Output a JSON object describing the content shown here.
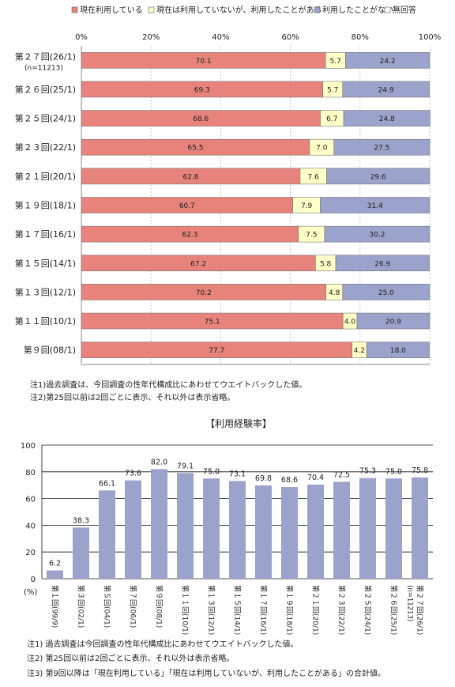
{
  "chart_data": [
    {
      "type": "bar",
      "orientation": "horizontal",
      "stacked": true,
      "percent_scale": true,
      "legend_position": "top",
      "xlim": [
        0,
        100
      ],
      "x_tick_labels": [
        "0%",
        "20%",
        "40%",
        "60%",
        "80%",
        "100%"
      ],
      "grid": true,
      "colors": {
        "現在利用している": "#e8837b",
        "現在は利用していないが、利用したことがある": "#ffffc8",
        "利用したことがない": "#9ba2cb",
        "無回答": "#ffffff"
      },
      "categories": [
        "第２７回(26/1)",
        "第２６回(25/1)",
        "第２５回(24/1)",
        "第２３回(22/1)",
        "第２１回(20/1)",
        "第１９回(18/1)",
        "第１７回(16/1)",
        "第１５回(14/1)",
        "第１３回(12/1)",
        "第１１回(10/1)",
        "第９回(08/1)"
      ],
      "sample_note": "(n=11213)",
      "series": [
        {
          "name": "現在利用している",
          "values": [
            70.1,
            69.3,
            68.6,
            65.5,
            62.8,
            60.7,
            62.3,
            67.2,
            70.2,
            75.1,
            77.7
          ]
        },
        {
          "name": "現在は利用していないが、利用したことがある",
          "values": [
            5.7,
            5.7,
            6.7,
            7.0,
            7.6,
            7.9,
            7.5,
            5.8,
            4.8,
            4.0,
            4.2
          ]
        },
        {
          "name": "利用したことがない",
          "values": [
            24.2,
            24.9,
            24.8,
            27.5,
            29.6,
            31.4,
            30.2,
            26.9,
            25.0,
            20.9,
            18.0
          ]
        },
        {
          "name": "無回答",
          "values": [
            0,
            0,
            0,
            0,
            0,
            0,
            0,
            0,
            0,
            0,
            0
          ]
        }
      ]
    },
    {
      "type": "bar",
      "title": "【利用経験率】",
      "ylabel": "(%)",
      "ylim": [
        0,
        100
      ],
      "y_ticks": [
        0,
        20,
        40,
        60,
        80,
        100
      ],
      "grid": true,
      "color": "#9ba2cb",
      "categories": [
        "第１回(99/9)",
        "第３回(02/1)",
        "第５回(04/1)",
        "第７回(06/1)",
        "第９回(08/1)",
        "第１１回(10/1)",
        "第１３回(12/1)",
        "第１５回(14/1)",
        "第１７回(16/1)",
        "第１９回(18/1)",
        "第２１回(20/1)",
        "第２３回(22/1)",
        "第２５回(24/1)",
        "第２６回(25/1)",
        "第２７回(26/1)"
      ],
      "category_lines": [
        [
          "第",
          "１",
          "回",
          "(99/9)"
        ],
        [
          "第",
          "３",
          "回",
          "(02/1)"
        ],
        [
          "第",
          "５",
          "回",
          "(04/1)"
        ],
        [
          "第",
          "７",
          "回",
          "(06/1)"
        ],
        [
          "第",
          "９",
          "回",
          "(08/1)"
        ],
        [
          "第",
          "１",
          "１",
          "回",
          "(10/1)"
        ],
        [
          "第",
          "１",
          "３",
          "回",
          "(12/1)"
        ],
        [
          "第",
          "１",
          "５",
          "回",
          "(14/1)"
        ],
        [
          "第",
          "１",
          "７",
          "回",
          "(16/1)"
        ],
        [
          "第",
          "１",
          "９",
          "回",
          "(18/1)"
        ],
        [
          "第",
          "２",
          "１",
          "回",
          "(20/1)"
        ],
        [
          "第",
          "２",
          "３",
          "回",
          "(22/1)"
        ],
        [
          "第",
          "２",
          "５",
          "回",
          "(24/1)"
        ],
        [
          "第",
          "２",
          "６",
          "回",
          "(25/1)"
        ],
        [
          "第",
          "２",
          "７",
          "回",
          "(26/1)"
        ]
      ],
      "sample_note": "(n=11213)",
      "values": [
        6.2,
        38.3,
        66.1,
        73.6,
        82.0,
        79.1,
        75.0,
        73.1,
        69.8,
        68.6,
        70.4,
        72.5,
        75.3,
        75.0,
        75.8
      ]
    }
  ],
  "notes_top": [
    "注1)過去調査は、今回調査の性年代構成比にあわせてウエイトバックした値。",
    "注2)第25回以前は2回ごとに表示、それ以外は表示省略。"
  ],
  "notes_bottom": [
    "注1)  過去調査は今回調査の性年代構成比にあわせてウエイトバックした値。",
    "注2)  第25回以前は2回ごとに表示、それ以外は表示省略。",
    "注3)  第9回以降は「現在利用している」「現在は利用していないが、利用したことがある」の合計値。"
  ]
}
